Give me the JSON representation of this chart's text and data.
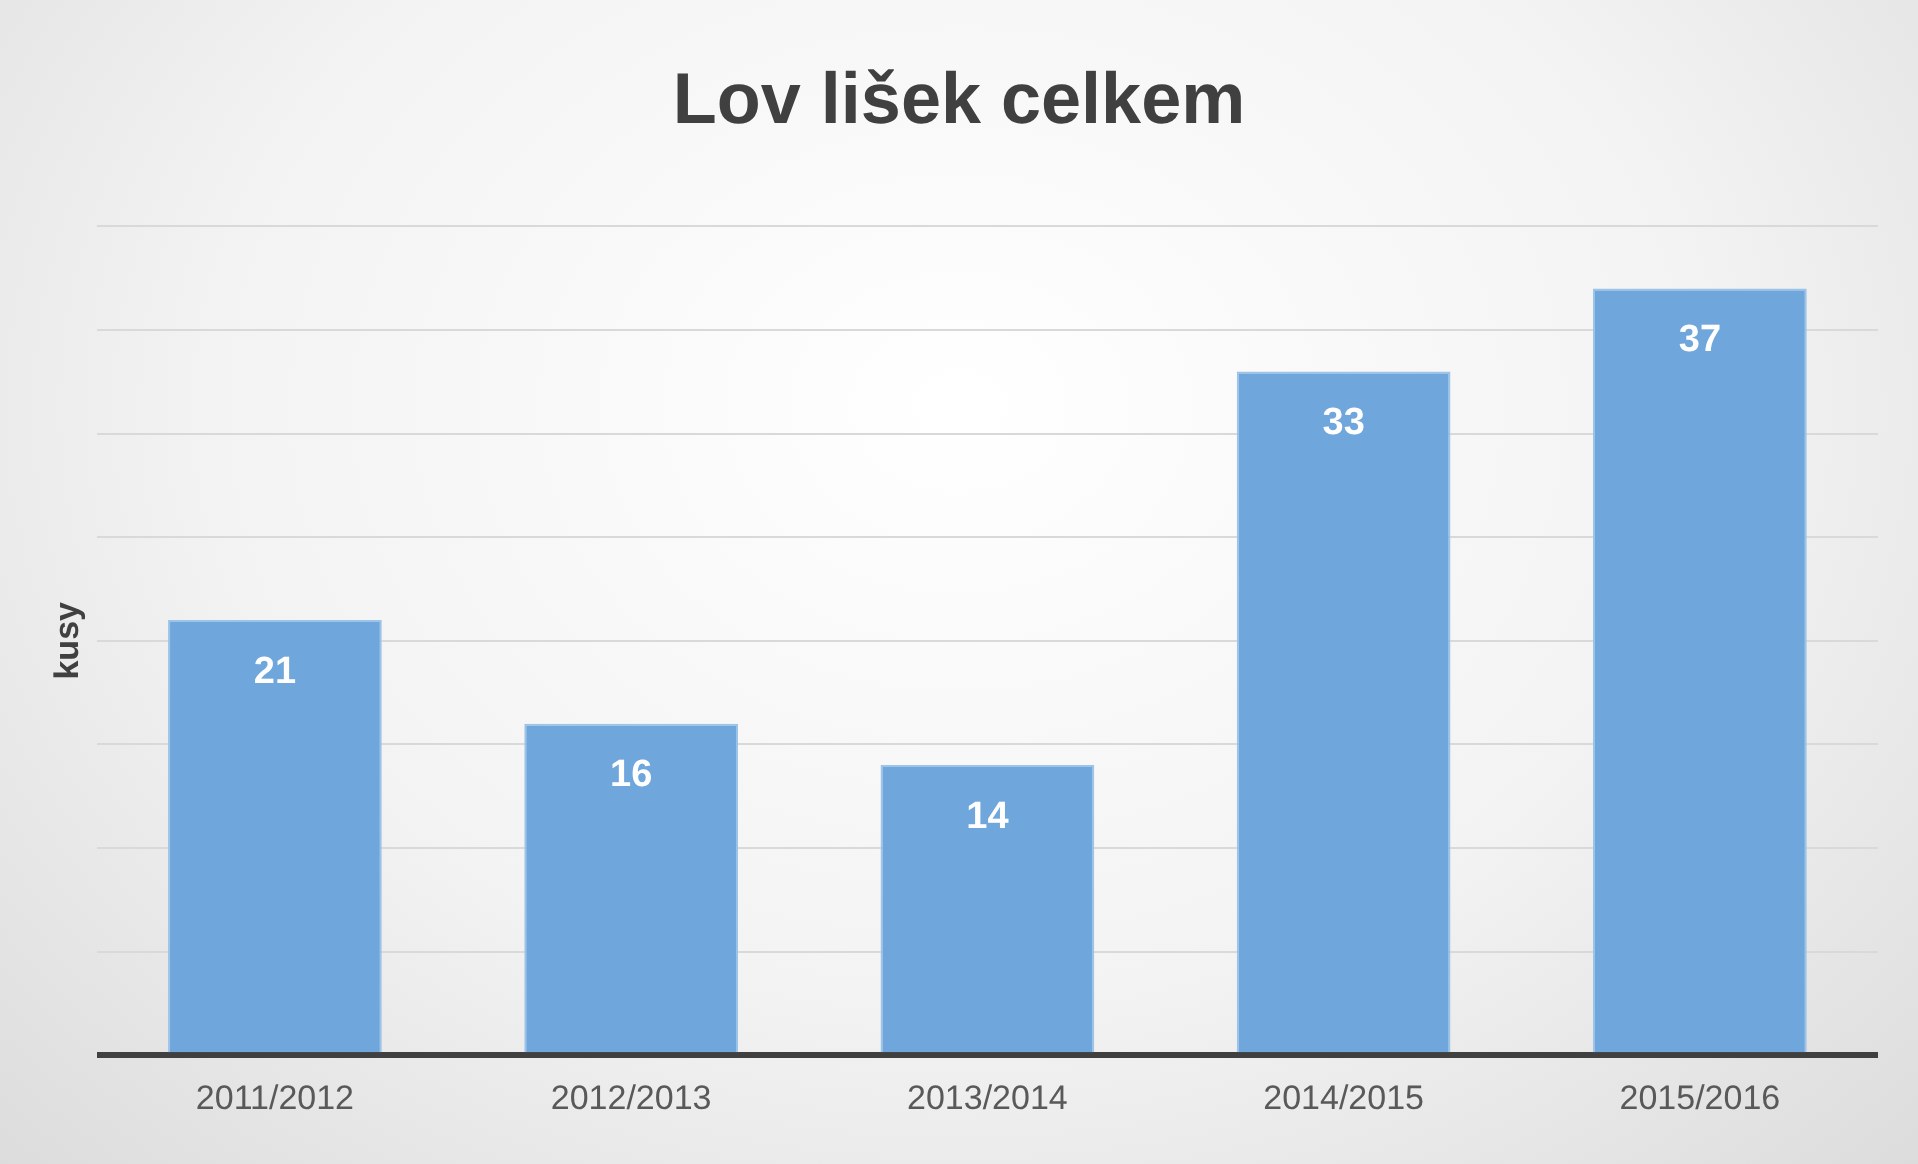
{
  "chart_data": {
    "type": "bar",
    "title": "Lov lišek celkem",
    "ylabel": "kusy",
    "categories": [
      "2011/2012",
      "2012/2013",
      "2013/2014",
      "2014/2015",
      "2015/2016"
    ],
    "values": [
      21,
      16,
      14,
      33,
      37
    ],
    "color": "#6fa6db",
    "ylim": [
      0,
      40
    ],
    "yticks": [
      {
        "value": 0,
        "label": null
      },
      {
        "value": 5,
        "label": null
      },
      {
        "value": 10,
        "label": null
      },
      {
        "value": 15,
        "label": null
      },
      {
        "value": 20,
        "label": null
      },
      {
        "value": 25,
        "label": null
      },
      {
        "value": 30,
        "label": null
      },
      {
        "value": 35,
        "label": null
      },
      {
        "value": 40,
        "label": null
      }
    ],
    "grid": "y",
    "tick_labels": "x",
    "data_labels": true,
    "legend": false
  }
}
